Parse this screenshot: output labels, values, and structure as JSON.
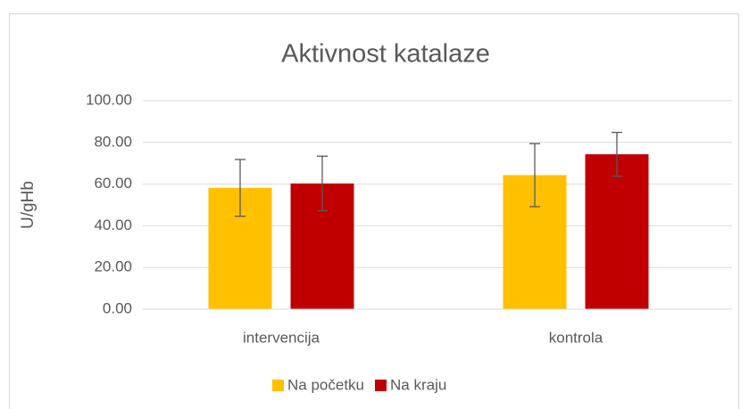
{
  "chart_data": {
    "type": "bar",
    "title": "Aktivnost katalaze",
    "ylabel": "U/gHb",
    "categories": [
      "intervencija",
      "kontrola"
    ],
    "series": [
      {
        "name": "Na početku",
        "color": "#ffc000",
        "values": [
          58.2,
          64.3
        ],
        "errors": [
          13.6,
          15.1
        ]
      },
      {
        "name": "Na kraju",
        "color": "#c00000",
        "values": [
          60.3,
          74.3
        ],
        "errors": [
          13.1,
          10.5
        ]
      }
    ],
    "ylim": [
      0,
      100
    ],
    "yticks": [
      {
        "value": 0,
        "label": "0.00"
      },
      {
        "value": 20,
        "label": "20.00"
      },
      {
        "value": 40,
        "label": "40.00"
      },
      {
        "value": 60,
        "label": "60.00"
      },
      {
        "value": 80,
        "label": "80.00"
      },
      {
        "value": 100,
        "label": "100.00"
      }
    ],
    "grid": true,
    "legend": "bottom"
  }
}
